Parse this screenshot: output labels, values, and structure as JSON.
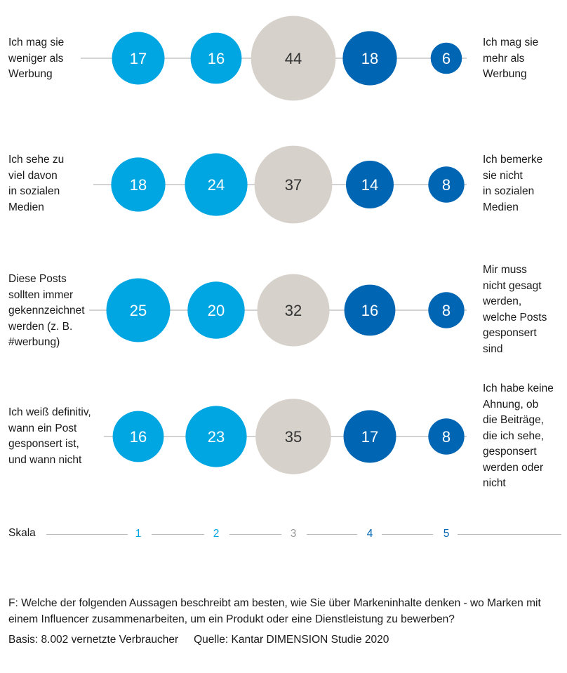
{
  "colors": {
    "light_blue": "#00a6e2",
    "gray": "#d6d1ca",
    "dark_blue": "#0066b3",
    "line": "#b9b9b9",
    "white_text": "#ffffff",
    "dark_text": "#333333"
  },
  "chart_data": {
    "type": "bubble",
    "scale_values": [
      "1",
      "2",
      "3",
      "4",
      "5"
    ],
    "scale_colors": [
      "#00a6e2",
      "#00a6e2",
      "#d6d1ca",
      "#0066b3",
      "#0066b3"
    ],
    "rows": [
      {
        "left": "Ich mag sie\nweniger als\nWerbung",
        "right": "Ich mag sie\nmehr als\nWerbung",
        "values": [
          17,
          16,
          44,
          18,
          6
        ]
      },
      {
        "left": "Ich sehe zu\nviel davon\nin sozialen\nMedien",
        "right": "Ich bemerke\nsie nicht\nin sozialen\nMedien",
        "values": [
          18,
          24,
          37,
          14,
          8
        ]
      },
      {
        "left": "Diese Posts\nsollten immer\ngekennzeichnet\nwerden (z. B.\n#werbung)",
        "right": "Mir muss\nnicht gesagt\nwerden,\nwelche Posts\ngesponsert\nsind",
        "values": [
          25,
          20,
          32,
          16,
          8
        ]
      },
      {
        "left": "Ich weiß definitiv,\nwann ein Post\ngesponsert ist,\nund wann nicht",
        "right": "Ich habe keine\nAhnung, ob\ndie Beiträge,\ndie ich sehe,\ngesponsert\nwerden oder\nnicht",
        "values": [
          16,
          23,
          35,
          17,
          8
        ]
      }
    ]
  },
  "scale": {
    "label": "Skala"
  },
  "footer": {
    "question": "F: Welche der folgenden Aussagen beschreibt am besten, wie Sie über Markeninhalte denken - wo Marken mit einem Influencer zusammenarbeiten, um ein Produkt oder eine Dienstleistung zu bewerben?",
    "basis": "Basis: 8.002 vernetzte Verbraucher",
    "source": "Quelle: Kantar DIMENSION Studie 2020"
  }
}
